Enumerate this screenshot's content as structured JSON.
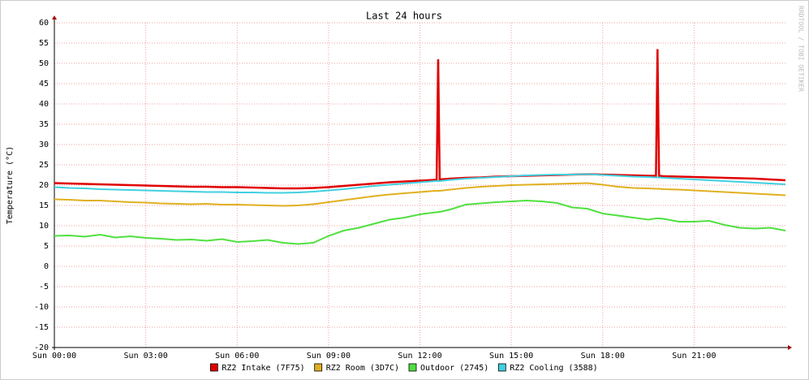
{
  "chart_data": {
    "type": "line",
    "title": "Last 24 hours",
    "y_label": "Temperature (°C)",
    "watermark": "RRDTOOL / TOBI OETIKER",
    "grid": true,
    "x": [
      0,
      0.5,
      1,
      1.5,
      2,
      2.5,
      3,
      3.5,
      4,
      4.5,
      5,
      5.5,
      6,
      6.5,
      7,
      7.5,
      8,
      8.5,
      9,
      9.5,
      10,
      10.5,
      11,
      11.5,
      12,
      12.5,
      12.55,
      12.6,
      12.65,
      13,
      13.5,
      14,
      14.5,
      15,
      15.5,
      16,
      16.5,
      17,
      17.5,
      18,
      18.5,
      19,
      19.5,
      19.75,
      19.8,
      19.85,
      20,
      20.5,
      21,
      21.5,
      22,
      22.5,
      23,
      23.5,
      24
    ],
    "xlim": [
      0,
      24
    ],
    "xticks": [
      {
        "value": 0,
        "label": "Sun 00:00"
      },
      {
        "value": 3,
        "label": "Sun 03:00"
      },
      {
        "value": 6,
        "label": "Sun 06:00"
      },
      {
        "value": 9,
        "label": "Sun 09:00"
      },
      {
        "value": 12,
        "label": "Sun 12:00"
      },
      {
        "value": 15,
        "label": "Sun 15:00"
      },
      {
        "value": 18,
        "label": "Sun 18:00"
      },
      {
        "value": 21,
        "label": "Sun 21:00"
      }
    ],
    "ylim": [
      -20,
      60
    ],
    "yticks": [
      -20,
      -15,
      -10,
      -5,
      0,
      5,
      10,
      15,
      20,
      25,
      30,
      35,
      40,
      45,
      50,
      55,
      60
    ],
    "series": [
      {
        "name": "RZ2 Intake (7F75)",
        "color": "#e00000",
        "values": [
          20.5,
          20.4,
          20.3,
          20.2,
          20.1,
          20,
          19.9,
          19.8,
          19.7,
          19.6,
          19.6,
          19.5,
          19.5,
          19.4,
          19.3,
          19.2,
          19.2,
          19.3,
          19.5,
          19.8,
          20.1,
          20.4,
          20.7,
          20.9,
          21.1,
          21.3,
          21.3,
          51,
          21.4,
          21.6,
          21.8,
          21.9,
          22.1,
          22.2,
          22.3,
          22.4,
          22.5,
          22.6,
          22.7,
          22.6,
          22.5,
          22.4,
          22.3,
          22.3,
          53.5,
          22.3,
          22.2,
          22.1,
          22,
          21.9,
          21.8,
          21.7,
          21.6,
          21.4,
          21.2
        ]
      },
      {
        "name": "RZ2 Room (3D7C)",
        "color": "#e0b020",
        "values": [
          16.5,
          16.4,
          16.2,
          16.2,
          16,
          15.8,
          15.7,
          15.5,
          15.4,
          15.3,
          15.4,
          15.2,
          15.2,
          15.1,
          15,
          14.9,
          15,
          15.3,
          15.8,
          16.3,
          16.8,
          17.3,
          17.7,
          18,
          18.3,
          18.6,
          18.6,
          18.6,
          18.6,
          18.9,
          19.3,
          19.6,
          19.8,
          20,
          20.1,
          20.2,
          20.3,
          20.4,
          20.5,
          20.1,
          19.6,
          19.3,
          19.2,
          19.1,
          19.1,
          19.1,
          19,
          18.9,
          18.7,
          18.5,
          18.3,
          18.1,
          17.9,
          17.7,
          17.5
        ]
      },
      {
        "name": "Outdoor (2745)",
        "color": "#50e040",
        "values": [
          7.5,
          7.6,
          7.3,
          7.8,
          7.1,
          7.4,
          7,
          6.8,
          6.5,
          6.6,
          6.3,
          6.7,
          6,
          6.2,
          6.5,
          5.8,
          5.5,
          5.8,
          7.5,
          8.8,
          9.5,
          10.5,
          11.5,
          12,
          12.8,
          13.3,
          13.3,
          13.4,
          13.4,
          14,
          15.2,
          15.5,
          15.8,
          16,
          16.2,
          16,
          15.6,
          14.5,
          14.2,
          13,
          12.5,
          12,
          11.5,
          11.8,
          11.8,
          11.8,
          11.7,
          11,
          11,
          11.2,
          10.2,
          9.5,
          9.3,
          9.5,
          8.8
        ]
      },
      {
        "name": "RZ2 Cooling (3588)",
        "color": "#40d0e0",
        "values": [
          19.5,
          19.3,
          19.2,
          19,
          18.9,
          18.8,
          18.7,
          18.6,
          18.5,
          18.4,
          18.3,
          18.3,
          18.2,
          18.2,
          18.1,
          18.1,
          18.2,
          18.4,
          18.7,
          19,
          19.4,
          19.8,
          20.1,
          20.4,
          20.7,
          21,
          21,
          21,
          21,
          21.3,
          21.6,
          21.8,
          22,
          22.2,
          22.4,
          22.5,
          22.6,
          22.6,
          22.7,
          22.5,
          22.3,
          22.1,
          22,
          21.9,
          21.9,
          21.9,
          21.8,
          21.6,
          21.4,
          21.2,
          21,
          20.8,
          20.6,
          20.4,
          20.2
        ]
      }
    ]
  }
}
